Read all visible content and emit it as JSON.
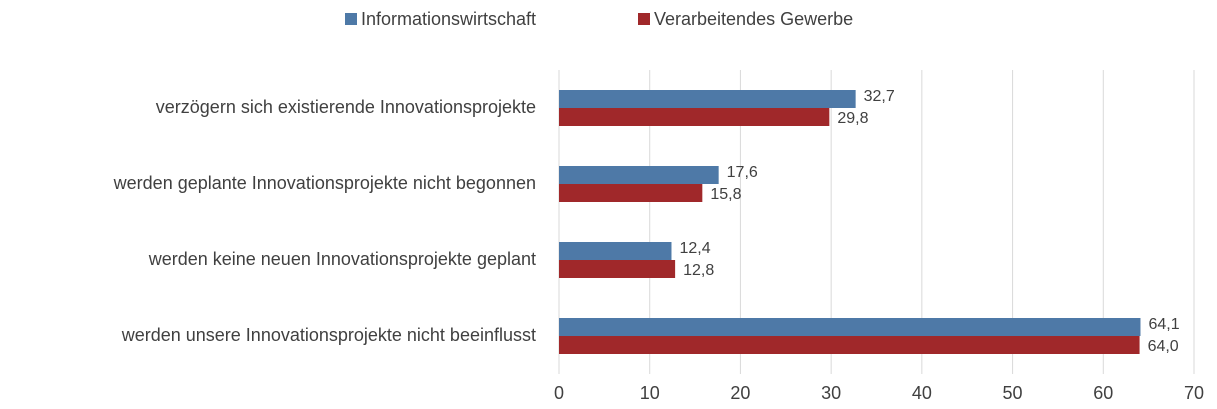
{
  "chart_data": {
    "type": "bar",
    "orientation": "horizontal",
    "categories": [
      "verzögern sich existierende Innovationsprojekte",
      "werden geplante Innovationsprojekte nicht begonnen",
      "werden keine neuen Innovationsprojekte geplant",
      "werden unsere Innovationsprojekte nicht beeinflusst"
    ],
    "series": [
      {
        "name": "Informationswirtschaft",
        "color": "#4e79a7",
        "values": [
          32.7,
          17.6,
          12.4,
          64.1
        ],
        "value_labels": [
          "32,7",
          "17,6",
          "12,4",
          "64,1"
        ]
      },
      {
        "name": "Verarbeitendes Gewerbe",
        "color": "#a0282a",
        "values": [
          29.8,
          15.8,
          12.8,
          64.0
        ],
        "value_labels": [
          "29,8",
          "15,8",
          "12,8",
          "64,0"
        ]
      }
    ],
    "xlim": [
      0,
      70
    ],
    "xticks": [
      0,
      10,
      20,
      30,
      40,
      50,
      60,
      70
    ],
    "grid": true,
    "legend": "top"
  }
}
